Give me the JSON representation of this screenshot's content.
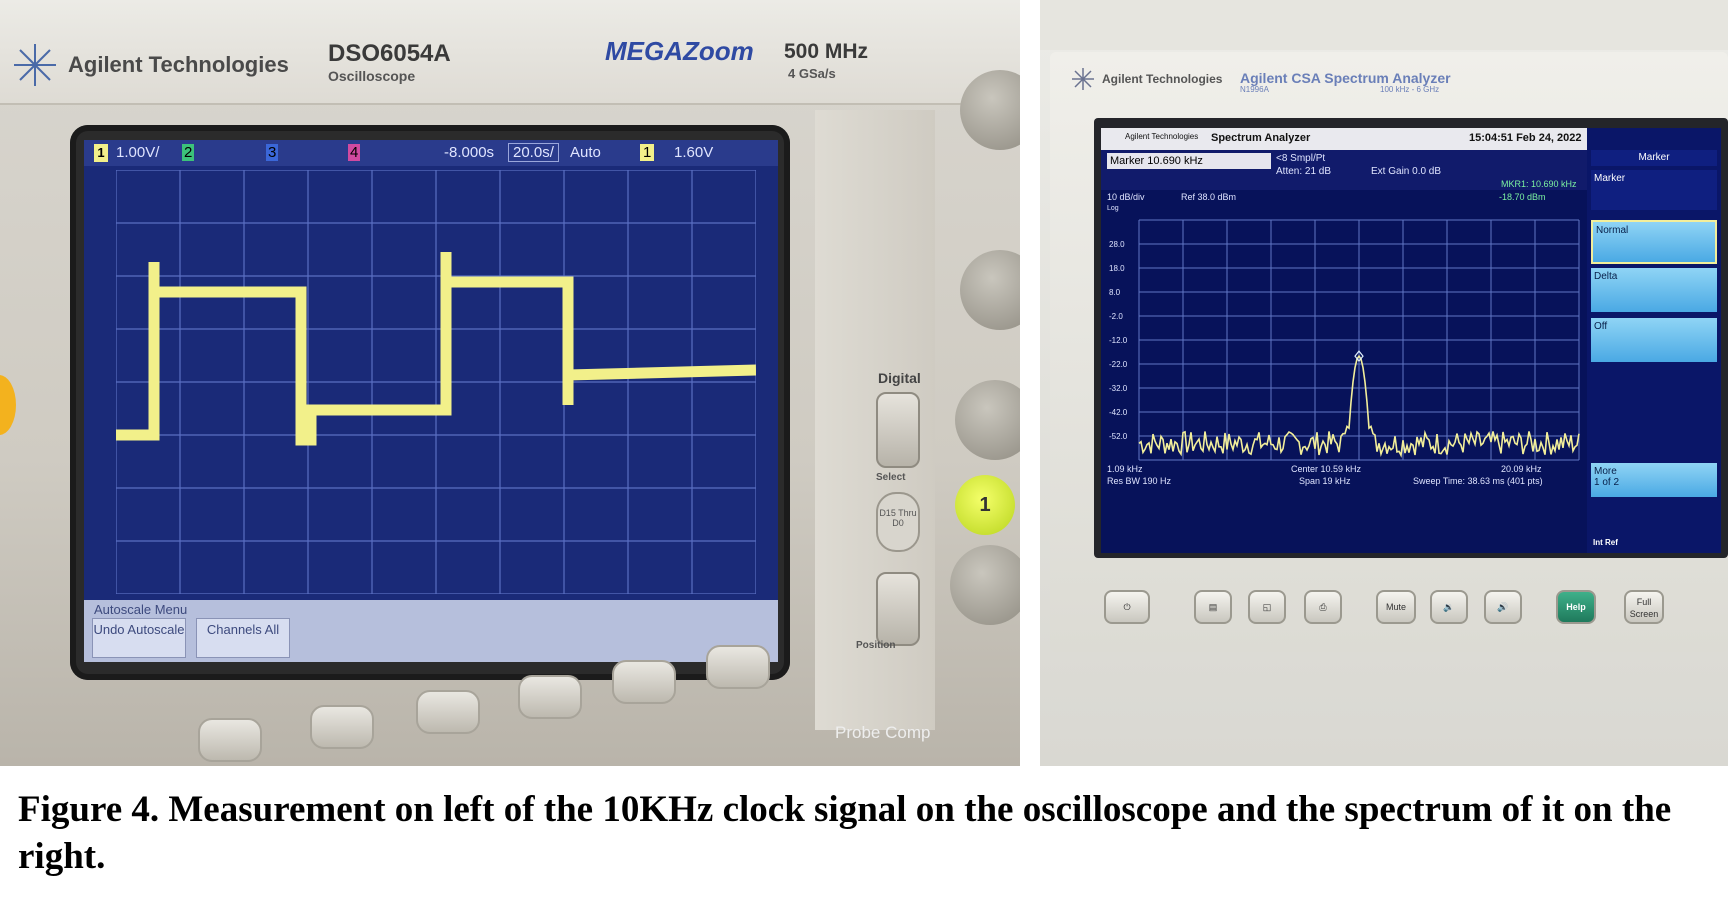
{
  "oscilloscope": {
    "brand": "Agilent Technologies",
    "model": "DSO6054A",
    "model_type": "Oscilloscope",
    "megazoom": "MEGAZoom",
    "bandwidth": "500 MHz",
    "sample_rate": "4 GSa/s",
    "status": {
      "ch1_scale": "1.00V/",
      "ch2": "2",
      "ch3": "3",
      "ch4": "4",
      "time_offset": "-8.000s",
      "timebase": "20.0s/",
      "trigger_mode": "Auto",
      "trigger_level": "1.60V"
    },
    "menu": {
      "title": "Autoscale Menu",
      "undo": "Undo Autoscale",
      "channels": "Channels All"
    },
    "digital_label": "Digital",
    "select_label": "Select",
    "d_label": "D15 Thru D0",
    "position_label": "Position",
    "ch1_button": "1",
    "probe_comp": "Probe Comp",
    "colors": {
      "screen": "#1a2a78",
      "grid": "#5a6fc2",
      "trace": "#f2f08a"
    }
  },
  "spectrum_analyzer": {
    "brand": "Agilent Technologies",
    "model": "Agilent CSA Spectrum Analyzer",
    "model_number": "N1996A",
    "range": "100 kHz - 6 GHz",
    "header": {
      "brand": "Agilent Technologies",
      "mode": "Spectrum Analyzer",
      "datetime": "15:04:51  Feb 24, 2022"
    },
    "marker_readout": "Marker 10.690 kHz",
    "smpl": "<8 Smpl/Pt",
    "atten": "Atten: 21 dB",
    "ext_gain": "Ext Gain 0.0 dB",
    "mkr1": "MKR1: 10.690 kHz",
    "mkr1_level": "-18.70 dBm",
    "scale": "10 dB/div",
    "scale_type": "Log",
    "ref": "Ref 38.0 dBm",
    "y_ticks": [
      "28.0",
      "18.0",
      "8.0",
      "-2.0",
      "-12.0",
      "-22.0",
      "-32.0",
      "-42.0",
      "-52.0"
    ],
    "start_freq": "1.09 kHz",
    "res_bw": "Res BW 190 Hz",
    "center": "Center 10.59 kHz",
    "span": "Span 19 kHz",
    "stop_freq": "20.09 kHz",
    "sweep": "Sweep Time: 38.63 ms (401 pts)",
    "softkeys": {
      "title": "Marker",
      "marker": "Marker",
      "normal": "Normal",
      "delta": "Delta",
      "off": "Off",
      "more": "More",
      "more_page": "1 of 2",
      "int_ref": "Int Ref"
    },
    "front_buttons": {
      "mute": "Mute",
      "help": "Help",
      "full_screen": "Full Screen"
    },
    "colors": {
      "trace": "#f2ee9a",
      "screen": "#07125a",
      "grid": "#6076c4"
    }
  },
  "caption": "Figure 4. Measurement on left of the 10KHz clock signal on the oscilloscope and the spectrum of it on the right."
}
